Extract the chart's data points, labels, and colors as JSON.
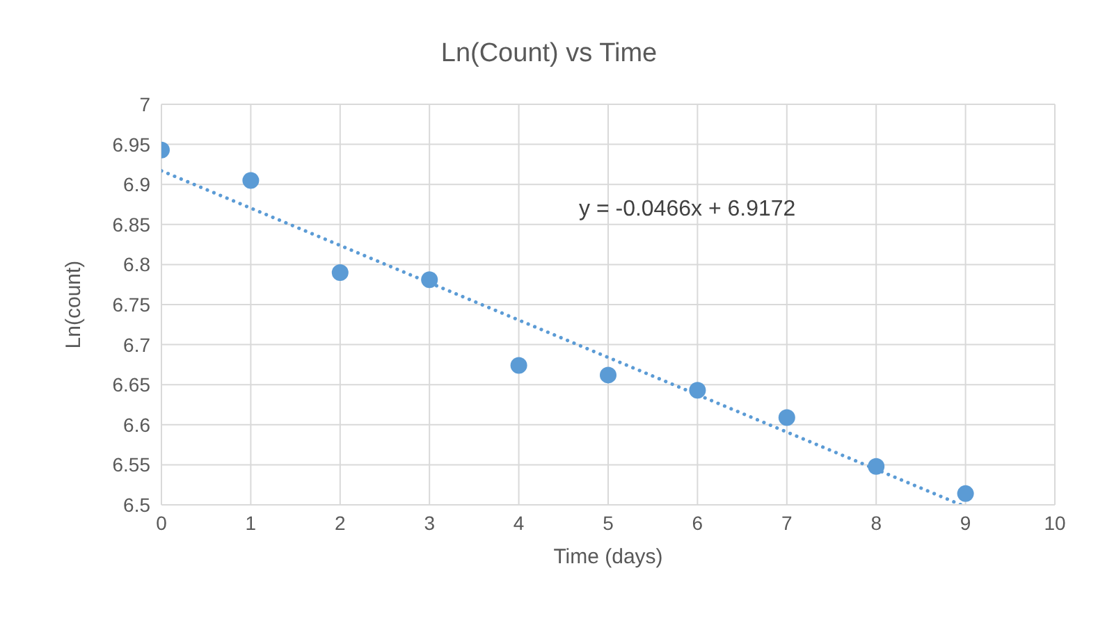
{
  "chart_data": {
    "type": "scatter",
    "title": "Ln(Count) vs Time",
    "xlabel": "Time (days)",
    "ylabel": "Ln(count)",
    "series": [
      {
        "color": "#5b9bd5",
        "marker": "circle",
        "x": [
          0,
          1,
          2,
          3,
          4,
          5,
          6,
          7,
          8,
          9
        ],
        "values": [
          6.943,
          6.905,
          6.79,
          6.781,
          6.674,
          6.662,
          6.643,
          6.609,
          6.548,
          6.514
        ]
      },
      {
        "type": "line",
        "color": "#5b9bd5",
        "marker": "none",
        "line_style": "dotted",
        "x": [
          0,
          8.95
        ],
        "values": [
          6.917,
          6.5
        ]
      }
    ],
    "xlim": [
      0,
      10
    ],
    "xticks": [
      0,
      1,
      2,
      3,
      4,
      5,
      6,
      7,
      8,
      9,
      10
    ],
    "ylim": [
      6.5,
      7
    ],
    "yticks": [
      6.5,
      6.55,
      6.6,
      6.65,
      6.7,
      6.75,
      6.8,
      6.85,
      6.9,
      6.95,
      7
    ],
    "grid": true,
    "annotations": [
      "y = -0.0466x + 6.9172"
    ]
  }
}
